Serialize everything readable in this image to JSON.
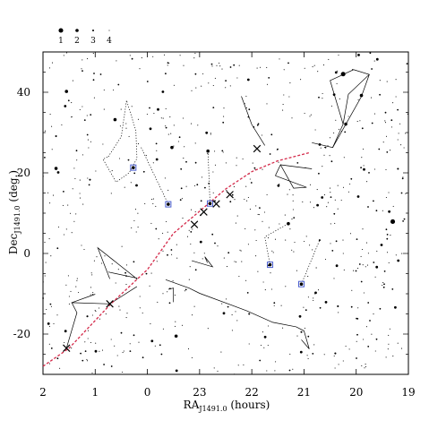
{
  "chart_data": {
    "type": "scatter",
    "title": "",
    "xlabel": "RA",
    "xlabel_sub": "J1491.0",
    "xlabel_unit": " (hours)",
    "ylabel": "Dec",
    "ylabel_sub": "J1491.0",
    "ylabel_unit": " (deg.)",
    "x_reversed": true,
    "xlim": [
      2,
      19
    ],
    "ylim": [
      -30,
      50
    ],
    "xticks": [
      2,
      1,
      0,
      23,
      22,
      21,
      20,
      19
    ],
    "xtick_labels": [
      "2",
      "1",
      "0",
      "23",
      "22",
      "21",
      "20",
      "19"
    ],
    "yticks": [
      40,
      20,
      0,
      -20
    ],
    "ytick_labels": [
      "40",
      "20",
      "0",
      "-20"
    ],
    "legend": {
      "placement": "top-left",
      "title": "",
      "entries": [
        {
          "label": "1",
          "magnitude": 1
        },
        {
          "label": "2",
          "magnitude": 2
        },
        {
          "label": "3",
          "magnitude": 3
        },
        {
          "label": "4",
          "magnitude": 4
        }
      ]
    },
    "ecliptic": {
      "color": "#d42a4a",
      "style": "dashed",
      "points": [
        [
          2,
          -28
        ],
        [
          1.5,
          -23.5
        ],
        [
          0.7,
          -12.5
        ],
        [
          0,
          -4
        ],
        [
          23.5,
          5
        ],
        [
          23,
          10.5
        ],
        [
          22.5,
          16
        ],
        [
          22,
          20.3
        ],
        [
          21.5,
          23
        ],
        [
          20.9,
          25
        ]
      ]
    },
    "planets": [
      {
        "ra": 1.55,
        "dec": -23.5
      },
      {
        "ra": 0.72,
        "dec": -12.5
      },
      {
        "ra": 23.1,
        "dec": 7.2
      },
      {
        "ra": 22.92,
        "dec": 10.3
      },
      {
        "ra": 22.68,
        "dec": 12.3
      },
      {
        "ra": 22.42,
        "dec": 14.6
      },
      {
        "ra": 21.9,
        "dec": 26
      }
    ],
    "highlighted_stars": [
      {
        "ra": 0.27,
        "dec": 21.3,
        "label_ra": 0.27,
        "label_dec": 21.3
      },
      {
        "ra": 23.6,
        "dec": 12.2,
        "label_ra": 23.53,
        "label_dec": 26.3
      },
      {
        "ra": 22.8,
        "dec": 12.4,
        "label_ra": 22.84,
        "label_dec": 25.4
      },
      {
        "ra": 21.65,
        "dec": -2.8,
        "label_ra": 21.3,
        "label_dec": 7.4
      },
      {
        "ra": 21.05,
        "dec": -7.6,
        "label_ra": 20.7,
        "label_dec": 3.3
      }
    ],
    "bright_stars": [
      {
        "ra": 1.55,
        "dec": 40.2,
        "mag": 2
      },
      {
        "ra": 0.62,
        "dec": 33.2,
        "mag": 2
      },
      {
        "ra": 1.75,
        "dec": 21.1,
        "mag": 2
      },
      {
        "ra": 1.1,
        "dec": 18.3,
        "mag": 3
      },
      {
        "ra": 23.53,
        "dec": 26.3,
        "mag": 2
      },
      {
        "ra": 22.84,
        "dec": 25.4,
        "mag": 2
      },
      {
        "ra": 20.25,
        "dec": 44.5,
        "mag": 1
      },
      {
        "ra": 19.9,
        "dec": 39.2,
        "mag": 2
      },
      {
        "ra": 20.2,
        "dec": 32.1,
        "mag": 2
      },
      {
        "ra": 19.3,
        "dec": 7.9,
        "mag": 1
      },
      {
        "ra": 21.3,
        "dec": 7.4,
        "mag": 2
      },
      {
        "ra": 20.7,
        "dec": 3.3,
        "mag": 3
      },
      {
        "ra": 23.45,
        "dec": -20.5,
        "mag": 2
      },
      {
        "ra": 20.35,
        "dec": -13.1,
        "mag": 3
      },
      {
        "ra": 21.05,
        "dec": -19.5,
        "mag": 3
      },
      {
        "ra": 22.05,
        "dec": -15.0,
        "mag": 3
      },
      {
        "ra": 1.15,
        "dec": -15.6,
        "mag": 3
      },
      {
        "ra": 19.2,
        "dec": 21.0,
        "mag": 3
      },
      {
        "ra": 20.4,
        "dec": -24.8,
        "mag": 3
      },
      {
        "ra": 1.75,
        "dec": 29.1,
        "mag": 3
      }
    ],
    "constellation_lines": [
      {
        "style": "dotted",
        "points": [
          [
            0.75,
            24
          ],
          [
            0.5,
            29
          ],
          [
            0.4,
            38
          ],
          [
            0.22,
            30.5
          ],
          [
            0.2,
            23.6
          ],
          [
            0.35,
            20
          ],
          [
            0.6,
            17.7
          ],
          [
            0.85,
            23.4
          ],
          [
            0.75,
            24
          ]
        ]
      },
      {
        "style": "dotted",
        "points": [
          [
            0.12,
            26.3
          ],
          [
            23.6,
            12.2
          ]
        ]
      },
      {
        "style": "dotted",
        "points": [
          [
            22.84,
            25.4
          ],
          [
            22.8,
            12.4
          ]
        ]
      },
      {
        "style": "dotted",
        "points": [
          [
            21.65,
            -2.8
          ],
          [
            21.75,
            4.1
          ],
          [
            21.3,
            7.4
          ]
        ]
      },
      {
        "style": "dotted",
        "points": [
          [
            21.05,
            -7.6
          ],
          [
            20.7,
            3.3
          ]
        ]
      },
      {
        "style": "solid",
        "points": [
          [
            20.85,
            27.5
          ],
          [
            20.45,
            26.3
          ],
          [
            20.25,
            32.1
          ],
          [
            20.15,
            39.5
          ],
          [
            19.75,
            44.4
          ],
          [
            20.05,
            45.6
          ],
          [
            20.5,
            42.9
          ],
          [
            20.25,
            32.1
          ]
        ]
      },
      {
        "style": "solid",
        "points": [
          [
            20.45,
            26.3
          ],
          [
            19.9,
            38.9
          ],
          [
            19.75,
            44.4
          ]
        ]
      },
      {
        "style": "solid",
        "points": [
          [
            22.2,
            39.0
          ],
          [
            22.0,
            32.0
          ],
          [
            21.75,
            26.8
          ]
        ]
      },
      {
        "style": "solid",
        "points": [
          [
            21.55,
            19.3
          ],
          [
            20.95,
            16.4
          ],
          [
            21.2,
            16.2
          ],
          [
            21.45,
            22.0
          ],
          [
            21.55,
            19.3
          ]
        ]
      },
      {
        "style": "solid",
        "points": [
          [
            21.45,
            22.0
          ],
          [
            20.85,
            21.0
          ]
        ]
      },
      {
        "style": "solid",
        "points": [
          [
            0.75,
            -4.6
          ],
          [
            0.2,
            -6.1
          ],
          [
            0.2,
            -6.3
          ],
          [
            0.95,
            1.4
          ],
          [
            0.72,
            -6.3
          ]
        ]
      },
      {
        "style": "solid",
        "points": [
          [
            23.65,
            -6.5
          ],
          [
            23.2,
            -8.6
          ],
          [
            23.0,
            -9.9
          ],
          [
            22.1,
            -14.2
          ],
          [
            21.6,
            -17.1
          ],
          [
            21.15,
            -18.2
          ],
          [
            21.0,
            -19.2
          ],
          [
            20.9,
            -23.7
          ],
          [
            21.05,
            -21.4
          ]
        ]
      },
      {
        "style": "solid",
        "points": [
          [
            23.6,
            -8.9
          ],
          [
            23.5,
            -8.6
          ],
          [
            23.5,
            -12.1
          ]
        ]
      },
      {
        "style": "solid",
        "points": [
          [
            1.55,
            -23.5
          ],
          [
            1.35,
            -14.7
          ],
          [
            1.45,
            -12.2
          ],
          [
            0.72,
            -12.5
          ],
          [
            0.2,
            -8.2
          ]
        ]
      },
      {
        "style": "solid",
        "points": [
          [
            1.45,
            -12.2
          ],
          [
            1.0,
            -10.1
          ]
        ]
      },
      {
        "style": "solid",
        "points": [
          [
            23.15,
            -1.8
          ],
          [
            22.75,
            -3.3
          ],
          [
            22.9,
            -0.8
          ],
          [
            22.85,
            -2.3
          ]
        ]
      }
    ]
  }
}
